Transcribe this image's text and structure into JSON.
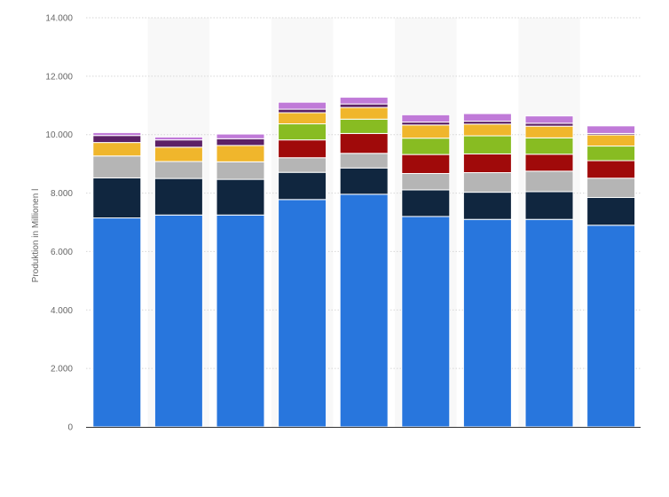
{
  "chart_data": {
    "type": "bar",
    "stacked": true,
    "ylabel": "Produktion in Millionen l",
    "ylim": [
      0,
      14000
    ],
    "yticks": [
      0,
      2000,
      4000,
      6000,
      8000,
      10000,
      12000,
      14000
    ],
    "ytick_labels": [
      "0",
      "2.000",
      "4.000",
      "6.000",
      "8.000",
      "10.000",
      "12.000",
      "14.000"
    ],
    "grid": true,
    "legend": "none",
    "categories": [
      "",
      "",
      "",
      "",
      "",
      "",
      "",
      "",
      ""
    ],
    "series": [
      {
        "color": "#2876dd",
        "values": [
          7150,
          7250,
          7250,
          7780,
          7960,
          7200,
          7100,
          7100,
          6900
        ]
      },
      {
        "color": "#10263f",
        "values": [
          1370,
          1250,
          1220,
          930,
          900,
          910,
          930,
          950,
          950
        ]
      },
      {
        "color": "#b5b5b5",
        "values": [
          750,
          580,
          600,
          500,
          500,
          560,
          670,
          700,
          660
        ]
      },
      {
        "color": "#a00a0a",
        "values": [
          0,
          0,
          0,
          610,
          680,
          650,
          640,
          580,
          600
        ]
      },
      {
        "color": "#88bc22",
        "values": [
          0,
          0,
          0,
          550,
          490,
          560,
          620,
          560,
          500
        ]
      },
      {
        "color": "#f0b62c",
        "values": [
          460,
          490,
          560,
          380,
          400,
          450,
          400,
          400,
          380
        ]
      },
      {
        "color": "#5c2166",
        "values": [
          240,
          250,
          230,
          120,
          120,
          100,
          100,
          100,
          50
        ]
      },
      {
        "color": "#c07ad8",
        "values": [
          100,
          100,
          160,
          240,
          230,
          250,
          260,
          250,
          260
        ]
      }
    ]
  }
}
